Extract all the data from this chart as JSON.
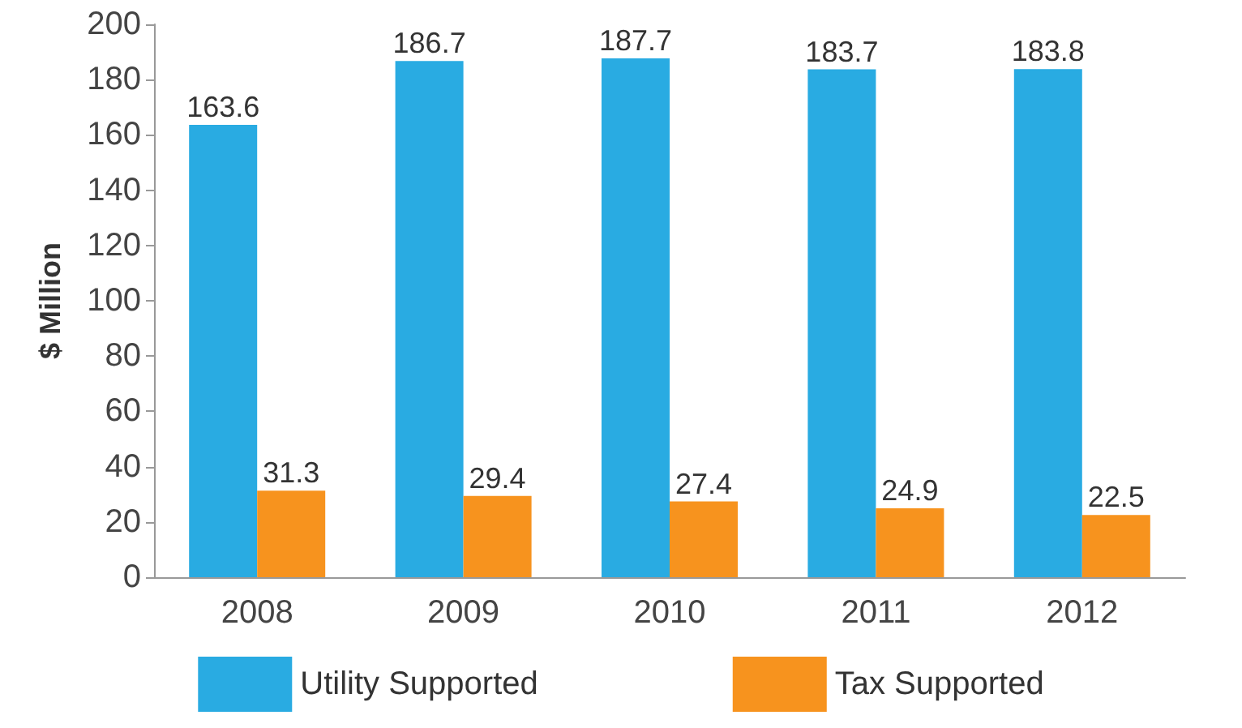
{
  "chart_data": {
    "type": "bar",
    "ylabel": "$ Million",
    "categories": [
      "2008",
      "2009",
      "2010",
      "2011",
      "2012"
    ],
    "series": [
      {
        "name": "Utility Supported",
        "color": "#29abe2",
        "values": [
          163.6,
          186.7,
          187.7,
          183.7,
          183.8
        ]
      },
      {
        "name": "Tax Supported",
        "color": "#f7931e",
        "values": [
          31.3,
          29.4,
          27.4,
          24.9,
          22.5
        ]
      }
    ],
    "ylim": [
      0,
      200
    ],
    "yticks": [
      0,
      20,
      40,
      60,
      80,
      100,
      120,
      140,
      160,
      180,
      200
    ],
    "grid": false,
    "legend": "bottom",
    "data_labels": true
  }
}
